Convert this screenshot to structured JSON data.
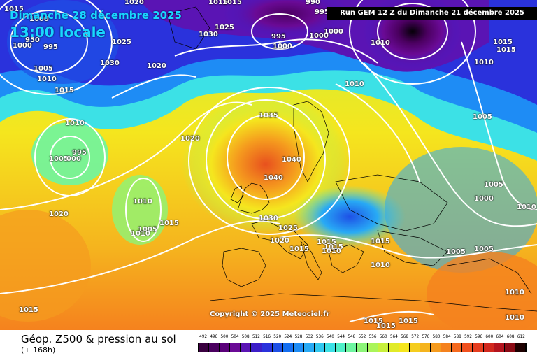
{
  "title": {
    "date": "Dimanche 28 décembre 2025",
    "hour": "13:00 locale"
  },
  "run_info": "Run GEM 12 Z du Dimanche 21 décembre 2025",
  "copyright": "Copyright © 2025 Meteociel.fr",
  "caption": "Géop. Z500 & pression au sol",
  "subcaption": "(+ 168h)",
  "legend": {
    "values": [
      "492",
      "496",
      "500",
      "504",
      "508",
      "512",
      "516",
      "520",
      "524",
      "528",
      "532",
      "536",
      "540",
      "544",
      "548",
      "552",
      "556",
      "560",
      "564",
      "568",
      "572",
      "576",
      "580",
      "584",
      "588",
      "592",
      "596",
      "600",
      "604",
      "608",
      "612"
    ],
    "colors": [
      "#3a0040",
      "#4b0060",
      "#5a007a",
      "#6a0a96",
      "#5a14b4",
      "#3c1ec8",
      "#2a32dc",
      "#1e50e6",
      "#146ef0",
      "#1e8cf5",
      "#28aaf5",
      "#32c8f0",
      "#3ce1e6",
      "#50f0c8",
      "#6ef5a0",
      "#8cf578",
      "#aaf55a",
      "#c8f03c",
      "#e1eb28",
      "#f5e61e",
      "#f5cd1e",
      "#f5b41e",
      "#f59b1e",
      "#f5821e",
      "#f5691e",
      "#f0501e",
      "#e63c1e",
      "#d2281e",
      "#b4141e",
      "#8c0a14",
      "#1e0000"
    ]
  },
  "isobars": [
    {
      "label": "1020",
      "l": 178,
      "t": -2
    },
    {
      "label": "1015",
      "l": 6,
      "t": 8
    },
    {
      "label": "1000",
      "l": 42,
      "t": 22
    },
    {
      "label": "950",
      "l": 36,
      "t": 52
    },
    {
      "label": "1000",
      "l": 18,
      "t": 60
    },
    {
      "label": "995",
      "l": 62,
      "t": 62
    },
    {
      "label": "1005",
      "l": 48,
      "t": 93
    },
    {
      "label": "1010",
      "l": 53,
      "t": 108
    },
    {
      "label": "1015",
      "l": 78,
      "t": 124
    },
    {
      "label": "1025",
      "l": 160,
      "t": 55
    },
    {
      "label": "1030",
      "l": 143,
      "t": 85
    },
    {
      "label": "1020",
      "l": 210,
      "t": 89
    },
    {
      "label": "1010",
      "l": 93,
      "t": 171
    },
    {
      "label": "995",
      "l": 103,
      "t": 213
    },
    {
      "label": "1005",
      "l": 70,
      "t": 222
    },
    {
      "label": "000",
      "l": 95,
      "t": 222
    },
    {
      "label": "1020",
      "l": 258,
      "t": 193
    },
    {
      "label": "1020",
      "l": 70,
      "t": 301
    },
    {
      "label": "1010",
      "l": 190,
      "t": 283
    },
    {
      "label": "1005",
      "l": 197,
      "t": 323
    },
    {
      "label": "1010",
      "l": 187,
      "t": 329
    },
    {
      "label": "1015",
      "l": 228,
      "t": 314
    },
    {
      "label": "1015",
      "l": 27,
      "t": 438
    },
    {
      "label": "1015",
      "l": 298,
      "t": -2
    },
    {
      "label": "1015",
      "l": 318,
      "t": -2
    },
    {
      "label": "1025",
      "l": 307,
      "t": 34
    },
    {
      "label": "1030",
      "l": 284,
      "t": 44
    },
    {
      "label": "995",
      "l": 388,
      "t": 47
    },
    {
      "label": "1000",
      "l": 390,
      "t": 61
    },
    {
      "label": "995",
      "l": 450,
      "t": 12
    },
    {
      "label": "990",
      "l": 437,
      "t": -2
    },
    {
      "label": "1000",
      "l": 442,
      "t": 46
    },
    {
      "label": "1000",
      "l": 463,
      "t": 40
    },
    {
      "label": "1010",
      "l": 530,
      "t": 56
    },
    {
      "label": "1010",
      "l": 493,
      "t": 115
    },
    {
      "label": "1035",
      "l": 370,
      "t": 160
    },
    {
      "label": "1040",
      "l": 403,
      "t": 223
    },
    {
      "label": "1040",
      "l": 377,
      "t": 249
    },
    {
      "label": "1030",
      "l": 370,
      "t": 307
    },
    {
      "label": "1025",
      "l": 398,
      "t": 321
    },
    {
      "label": "1020",
      "l": 386,
      "t": 339
    },
    {
      "label": "1015",
      "l": 414,
      "t": 351
    },
    {
      "label": "1015",
      "l": 453,
      "t": 341
    },
    {
      "label": "1015",
      "l": 463,
      "t": 348
    },
    {
      "label": "1010",
      "l": 460,
      "t": 354
    },
    {
      "label": "1015",
      "l": 530,
      "t": 340
    },
    {
      "label": "1010",
      "l": 530,
      "t": 374
    },
    {
      "label": "1015",
      "l": 705,
      "t": 55
    },
    {
      "label": "1015",
      "l": 710,
      "t": 66
    },
    {
      "label": "1010",
      "l": 678,
      "t": 84
    },
    {
      "label": "1005",
      "l": 676,
      "t": 162
    },
    {
      "label": "1005",
      "l": 692,
      "t": 259
    },
    {
      "label": "1000",
      "l": 678,
      "t": 279
    },
    {
      "label": "1010",
      "l": 739,
      "t": 291
    },
    {
      "label": "1005",
      "l": 638,
      "t": 355
    },
    {
      "label": "1005",
      "l": 678,
      "t": 351
    },
    {
      "label": "1010",
      "l": 722,
      "t": 413
    },
    {
      "label": "1010",
      "l": 722,
      "t": 449
    },
    {
      "label": "1015",
      "l": 520,
      "t": 454
    },
    {
      "label": "1015",
      "l": 538,
      "t": 461
    },
    {
      "label": "1015",
      "l": 570,
      "t": 454
    }
  ]
}
